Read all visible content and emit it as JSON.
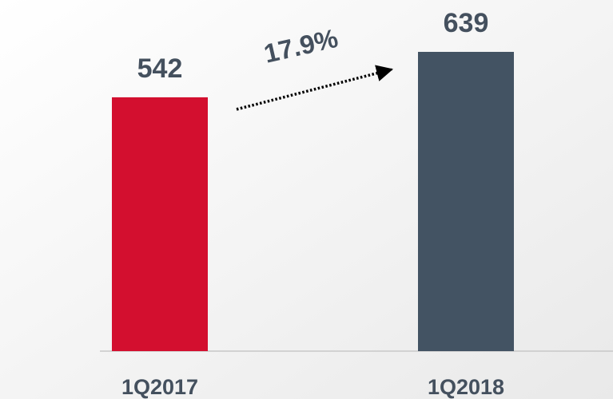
{
  "chart_data": {
    "type": "bar",
    "categories": [
      "1Q2017",
      "1Q2018"
    ],
    "values": [
      542,
      639
    ],
    "colors": [
      "#d30f2f",
      "#435363"
    ],
    "annotation": "17.9%"
  }
}
